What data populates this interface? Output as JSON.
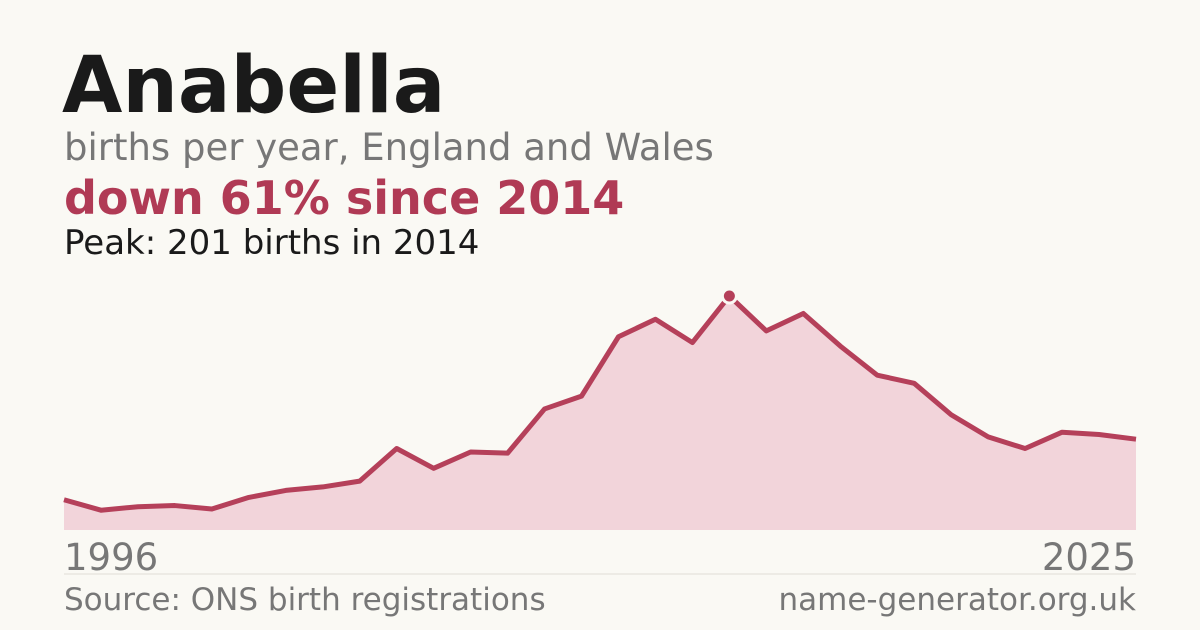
{
  "chart_data": {
    "type": "area",
    "title": "Anabella",
    "subtitle": "births per year, England and Wales",
    "headline": "down 61% since 2014",
    "annotation": "Peak: 201 births in 2014",
    "source": "Source: ONS birth registrations",
    "site": "name-generator.org.uk",
    "x": [
      1996,
      1997,
      1998,
      1999,
      2000,
      2001,
      2002,
      2003,
      2004,
      2005,
      2006,
      2007,
      2008,
      2009,
      2010,
      2011,
      2012,
      2013,
      2014,
      2015,
      2016,
      2017,
      2018,
      2019,
      2020,
      2021,
      2022,
      2023,
      2024,
      2025
    ],
    "values": [
      26,
      17,
      20,
      21,
      18,
      28,
      34,
      37,
      42,
      70,
      53,
      67,
      66,
      104,
      115,
      166,
      181,
      161,
      201,
      171,
      186,
      158,
      133,
      126,
      99,
      80,
      70,
      84,
      82,
      78
    ],
    "color": "#b5405a",
    "fill": "#f2d4da",
    "xlim": [
      1996,
      2025
    ],
    "xticks": [
      1996,
      2025
    ],
    "ylim": [
      0,
      201
    ],
    "peak_index": 18
  }
}
